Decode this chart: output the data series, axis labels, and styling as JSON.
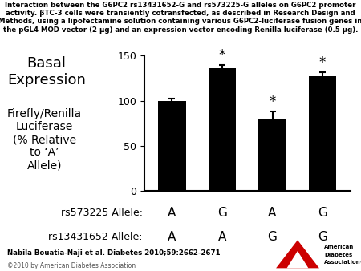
{
  "bar_values": [
    100,
    136,
    80,
    127
  ],
  "bar_errors": [
    2,
    4,
    8,
    5
  ],
  "bar_color": "#000000",
  "bar_width": 0.55,
  "bar_positions": [
    0,
    1,
    2,
    3
  ],
  "ylim": [
    0,
    150
  ],
  "yticks": [
    0,
    50,
    100,
    150
  ],
  "has_asterisk": [
    false,
    true,
    true,
    true
  ],
  "rs573225_labels": [
    "A",
    "G",
    "A",
    "G"
  ],
  "rs13431652_labels": [
    "A",
    "A",
    "G",
    "G"
  ],
  "title_line1": "Interaction between the G6PC2 rs13431652-G and rs573225-G alleles on G6PC2 promoter",
  "title_line2": "activity. βTC-3 cells were transiently cotransfected, as described in Research Design and",
  "title_line3": "Methods, using a lipofectamine solution containing various G6PC2-luciferase fusion genes in",
  "title_line4": "the pGL4 MOD vector (2 μg) and an expression vector encoding Renilla luciferase (0.5 μg).",
  "citation": "Nabila Bouatia-Naji et al. Diabetes 2010;59:2662-2671",
  "copyright": "©2010 by American Diabetes Association",
  "background_color": "#ffffff",
  "title_fontsize": 6.2,
  "tick_fontsize": 9,
  "annot_fontsize": 12,
  "row1_label": "rs573225 Allele:",
  "row2_label": "rs13431652 Allele:",
  "label_fontsize": 9,
  "basal_fontsize": 13,
  "ylabel_fontsize": 10
}
